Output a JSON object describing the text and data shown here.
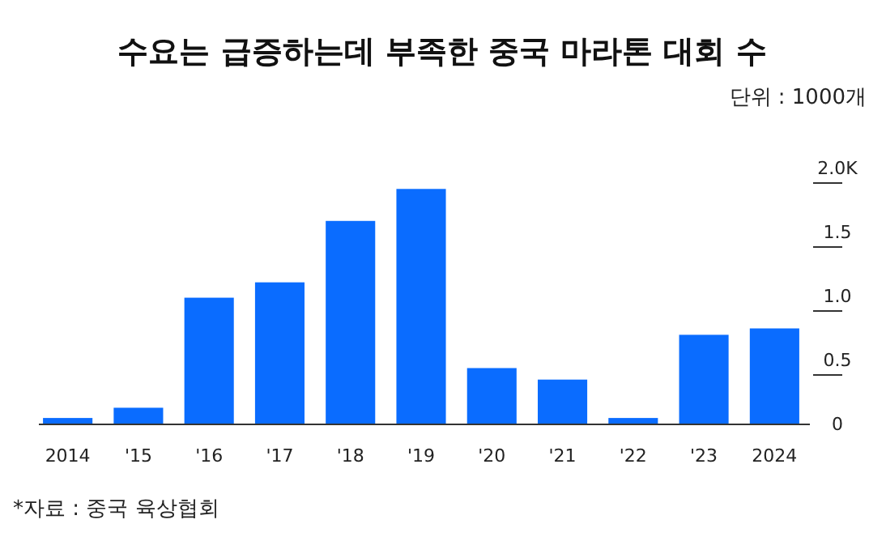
{
  "chart_data": {
    "type": "bar",
    "title": "수요는 급증하는데 부족한 중국 마라톤 대회 수",
    "categories": [
      "2014",
      "'15",
      "'16",
      "'17",
      "'18",
      "'19",
      "'20",
      "'21",
      "'22",
      "'23",
      "2024"
    ],
    "values": [
      0.05,
      0.13,
      0.99,
      1.11,
      1.59,
      1.84,
      0.44,
      0.35,
      0.05,
      0.7,
      0.75
    ],
    "color": "#0a6cff",
    "ylim": [
      0,
      2
    ],
    "yticks": [
      0,
      0.5,
      {
        "value": 1,
        "label": "1.0"
      },
      1.5,
      {
        "value": 2,
        "label": "2.0K"
      }
    ],
    "grid": false,
    "annotations": [
      "단위 : 1000개",
      "*자료 : 중국 육상협회"
    ]
  }
}
